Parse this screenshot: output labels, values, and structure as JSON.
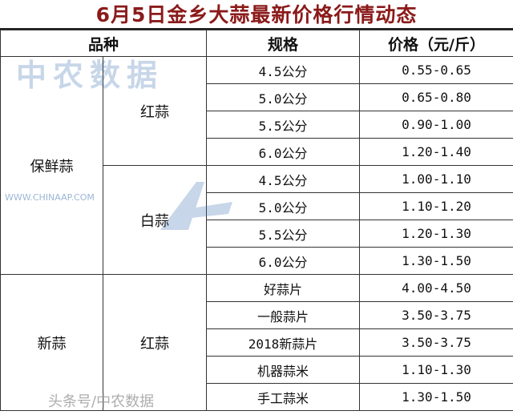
{
  "title": "6月5日金乡大蒜最新价格行情动态",
  "headers": {
    "variety": "品种",
    "spec": "规格",
    "price": "价格（元/斤）"
  },
  "groups": [
    {
      "category": "保鲜蒜",
      "subgroups": [
        {
          "name": "红蒜",
          "rows": [
            {
              "spec": "4.5公分",
              "price": "0.55-0.65"
            },
            {
              "spec": "5.0公分",
              "price": "0.65-0.80"
            },
            {
              "spec": "5.5公分",
              "price": "0.90-1.00"
            },
            {
              "spec": "6.0公分",
              "price": "1.20-1.40"
            }
          ]
        },
        {
          "name": "白蒜",
          "rows": [
            {
              "spec": "4.5公分",
              "price": "1.00-1.10"
            },
            {
              "spec": "5.0公分",
              "price": "1.10-1.20"
            },
            {
              "spec": "5.5公分",
              "price": "1.20-1.30"
            },
            {
              "spec": "6.0公分",
              "price": "1.30-1.50"
            }
          ]
        }
      ]
    },
    {
      "category": "新蒜",
      "subgroups": [
        {
          "name": "红蒜",
          "rows": [
            {
              "spec": "好蒜片",
              "price": "4.00-4.50"
            },
            {
              "spec": "一般蒜片",
              "price": "3.50-3.75"
            },
            {
              "spec": "2018新蒜片",
              "price": "3.50-3.75"
            },
            {
              "spec": "机器蒜米",
              "price": "1.10-1.30"
            },
            {
              "spec": "手工蒜米",
              "price": "1.30-1.50"
            }
          ]
        }
      ]
    }
  ],
  "watermark": {
    "name": "中农数据",
    "url": "WWW.CHINAAP.COM",
    "color": "#3a6fb0"
  },
  "source_watermark": "头条号/中农数据"
}
